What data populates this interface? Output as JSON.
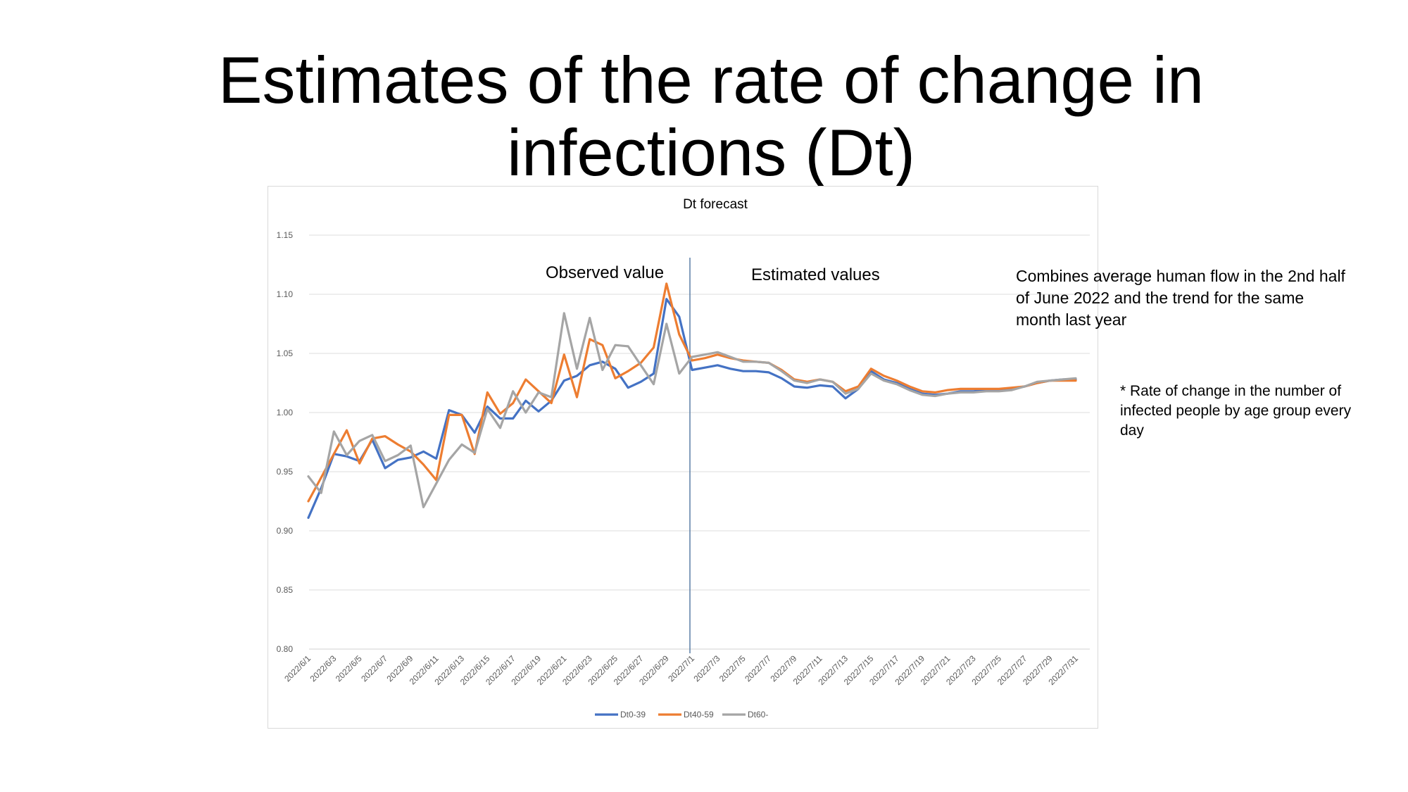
{
  "slide": {
    "title": "Estimates of the rate of change in infections (Dt)"
  },
  "annotations": {
    "observed": "Observed value",
    "estimated": "Estimated values",
    "combines": "Combines average human flow in the 2nd half of June 2022 and the trend for the same month last year",
    "rate_note": "* Rate of change in the number of infected people by age group every day"
  },
  "chart_data": {
    "type": "line",
    "title": "Dt forecast",
    "xlabel": "",
    "ylabel": "",
    "ylim": [
      0.8,
      1.15
    ],
    "yticks": [
      "0.80",
      "0.85",
      "0.90",
      "0.95",
      "1.00",
      "1.05",
      "1.10",
      "1.15"
    ],
    "grid": true,
    "legend": "bottom",
    "divider_at": "2022/7/1",
    "x": [
      "2022/6/1",
      "2022/6/2",
      "2022/6/3",
      "2022/6/4",
      "2022/6/5",
      "2022/6/6",
      "2022/6/7",
      "2022/6/8",
      "2022/6/9",
      "2022/6/10",
      "2022/6/11",
      "2022/6/12",
      "2022/6/13",
      "2022/6/14",
      "2022/6/15",
      "2022/6/16",
      "2022/6/17",
      "2022/6/18",
      "2022/6/19",
      "2022/6/20",
      "2022/6/21",
      "2022/6/22",
      "2022/6/23",
      "2022/6/24",
      "2022/6/25",
      "2022/6/26",
      "2022/6/27",
      "2022/6/28",
      "2022/6/29",
      "2022/6/30",
      "2022/7/1",
      "2022/7/2",
      "2022/7/3",
      "2022/7/4",
      "2022/7/5",
      "2022/7/6",
      "2022/7/7",
      "2022/7/8",
      "2022/7/9",
      "2022/7/10",
      "2022/7/11",
      "2022/7/12",
      "2022/7/13",
      "2022/7/14",
      "2022/7/15",
      "2022/7/16",
      "2022/7/17",
      "2022/7/18",
      "2022/7/19",
      "2022/7/20",
      "2022/7/21",
      "2022/7/22",
      "2022/7/23",
      "2022/7/24",
      "2022/7/25",
      "2022/7/26",
      "2022/7/27",
      "2022/7/28",
      "2022/7/29",
      "2022/7/30",
      "2022/7/31"
    ],
    "xticks": [
      "2022/6/1",
      "2022/6/3",
      "2022/6/5",
      "2022/6/7",
      "2022/6/9",
      "2022/6/11",
      "2022/6/13",
      "2022/6/15",
      "2022/6/17",
      "2022/6/19",
      "2022/6/21",
      "2022/6/23",
      "2022/6/25",
      "2022/6/27",
      "2022/6/29",
      "2022/7/1",
      "2022/7/3",
      "2022/7/5",
      "2022/7/7",
      "2022/7/9",
      "2022/7/11",
      "2022/7/13",
      "2022/7/15",
      "2022/7/17",
      "2022/7/19",
      "2022/7/21",
      "2022/7/23",
      "2022/7/25",
      "2022/7/27",
      "2022/7/29",
      "2022/7/31"
    ],
    "series": [
      {
        "name": "Dt0-39",
        "color": "#4472C4",
        "values": [
          0.911,
          0.936,
          0.965,
          0.963,
          0.959,
          0.977,
          0.953,
          0.96,
          0.962,
          0.967,
          0.961,
          1.002,
          0.998,
          0.983,
          1.005,
          0.995,
          0.995,
          1.01,
          1.001,
          1.01,
          1.027,
          1.031,
          1.04,
          1.043,
          1.037,
          1.021,
          1.026,
          1.033,
          1.096,
          1.081,
          1.036,
          1.038,
          1.04,
          1.037,
          1.035,
          1.035,
          1.034,
          1.029,
          1.022,
          1.021,
          1.023,
          1.022,
          1.012,
          1.02,
          1.035,
          1.028,
          1.025,
          1.02,
          1.016,
          1.015,
          1.016,
          1.018,
          1.018,
          1.019,
          1.019,
          1.02,
          1.022,
          1.025,
          1.027,
          1.028,
          1.028
        ]
      },
      {
        "name": "Dt40-59",
        "color": "#ED7D31",
        "values": [
          0.925,
          0.945,
          0.965,
          0.985,
          0.957,
          0.978,
          0.98,
          0.973,
          0.967,
          0.956,
          0.943,
          0.998,
          0.998,
          0.965,
          1.017,
          0.999,
          1.008,
          1.028,
          1.018,
          1.008,
          1.049,
          1.013,
          1.062,
          1.057,
          1.029,
          1.035,
          1.042,
          1.055,
          1.109,
          1.066,
          1.044,
          1.046,
          1.049,
          1.046,
          1.044,
          1.043,
          1.042,
          1.036,
          1.028,
          1.026,
          1.028,
          1.026,
          1.018,
          1.022,
          1.037,
          1.031,
          1.027,
          1.022,
          1.018,
          1.017,
          1.019,
          1.02,
          1.02,
          1.02,
          1.02,
          1.021,
          1.022,
          1.025,
          1.027,
          1.027,
          1.027
        ]
      },
      {
        "name": "Dt60-",
        "color": "#A5A5A5",
        "values": [
          0.946,
          0.932,
          0.984,
          0.964,
          0.976,
          0.981,
          0.959,
          0.964,
          0.972,
          0.92,
          0.94,
          0.96,
          0.973,
          0.966,
          1.003,
          0.987,
          1.018,
          1.0,
          1.017,
          1.013,
          1.084,
          1.037,
          1.08,
          1.036,
          1.057,
          1.056,
          1.04,
          1.024,
          1.075,
          1.033,
          1.047,
          1.049,
          1.051,
          1.047,
          1.043,
          1.043,
          1.042,
          1.035,
          1.027,
          1.025,
          1.028,
          1.026,
          1.016,
          1.02,
          1.033,
          1.027,
          1.024,
          1.019,
          1.015,
          1.014,
          1.016,
          1.017,
          1.017,
          1.018,
          1.018,
          1.019,
          1.022,
          1.026,
          1.027,
          1.028,
          1.029
        ]
      }
    ]
  }
}
